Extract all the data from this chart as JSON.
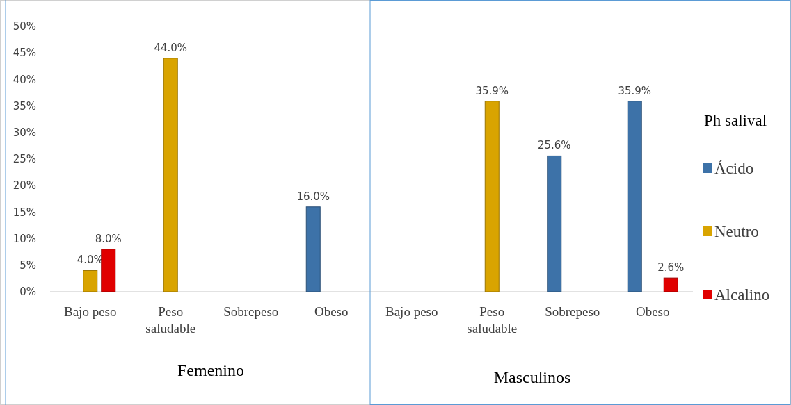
{
  "chart_data": {
    "type": "bar",
    "categories": [
      "Bajo peso",
      "Peso saludable",
      "Sobrepeso",
      "Obeso",
      "Bajo peso",
      "Peso saludable",
      "Sobrepeso",
      "Obeso"
    ],
    "series": [
      {
        "name": "Ácido",
        "color": "#3d72a8",
        "values": [
          null,
          null,
          null,
          16.0,
          null,
          null,
          25.6,
          35.9
        ],
        "value_labels": [
          null,
          null,
          null,
          "16.0%",
          null,
          null,
          "25.6%",
          "35.9%"
        ]
      },
      {
        "name": "Neutro",
        "color": "#d9a400",
        "values": [
          4.0,
          44.0,
          null,
          null,
          null,
          35.9,
          null,
          null
        ],
        "value_labels": [
          "4.0%",
          "44.0%",
          null,
          null,
          null,
          "35.9%",
          null,
          null
        ]
      },
      {
        "name": "Alcalino",
        "color": "#e00000",
        "values": [
          8.0,
          null,
          null,
          null,
          null,
          null,
          null,
          2.6
        ],
        "value_labels": [
          "8.0%",
          null,
          null,
          null,
          null,
          null,
          null,
          "2.6%"
        ]
      }
    ],
    "ylim": [
      0,
      50
    ],
    "yticks": [
      {
        "value": 0,
        "label": "0%"
      },
      {
        "value": 5,
        "label": "5%"
      },
      {
        "value": 10,
        "label": "10%"
      },
      {
        "value": 15,
        "label": "15%"
      },
      {
        "value": 20,
        "label": "20%"
      },
      {
        "value": 25,
        "label": "25%"
      },
      {
        "value": 30,
        "label": "30%"
      },
      {
        "value": 35,
        "label": "35%"
      },
      {
        "value": 40,
        "label": "40%"
      },
      {
        "value": 45,
        "label": "45%"
      },
      {
        "value": 50,
        "label": "50%"
      }
    ],
    "legend": "right",
    "legend_title": "Ph salival",
    "grid": false,
    "annotations": [
      "Femenino",
      "Masculinos"
    ]
  }
}
